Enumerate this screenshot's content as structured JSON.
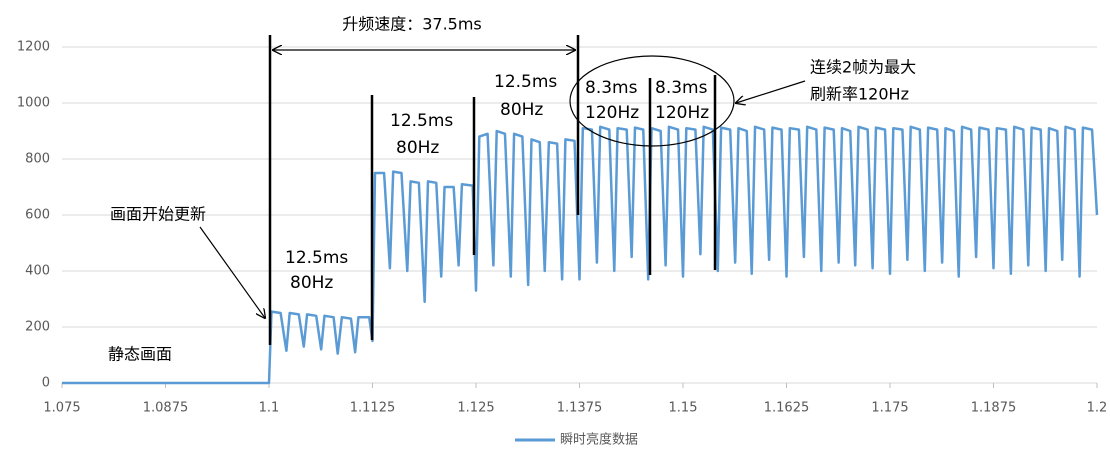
{
  "chart_data": {
    "type": "line",
    "series": [
      {
        "name": "瞬时亮度数据",
        "color": "#5b9bd5",
        "x": [
          1.075,
          1.1,
          1.1003,
          1.1014,
          1.1021,
          1.1025,
          1.1036,
          1.1042,
          1.1046,
          1.1057,
          1.1063,
          1.1067,
          1.1078,
          1.1083,
          1.1088,
          1.1099,
          1.1104,
          1.1108,
          1.1121,
          1.1125,
          1.1128,
          1.1139,
          1.1146,
          1.115,
          1.116,
          1.1167,
          1.1171,
          1.1181,
          1.1188,
          1.1192,
          1.1202,
          1.1208,
          1.1212,
          1.1223,
          1.1229,
          1.1233,
          1.1246,
          1.125,
          1.1254,
          1.1264,
          1.1271,
          1.1275,
          1.1285,
          1.1292,
          1.1296,
          1.1306,
          1.1313,
          1.1317,
          1.1327,
          1.1333,
          1.1338,
          1.1348,
          1.1354,
          1.1358,
          1.1369,
          1.1375,
          1.1379,
          1.139,
          1.1396,
          1.14,
          1.1411,
          1.1417,
          1.1421,
          1.1432,
          1.1438,
          1.1442,
          1.1452,
          1.1458,
          1.1462,
          1.1473,
          1.1479,
          1.1483,
          1.1494,
          1.15,
          1.1504,
          1.1515,
          1.1521,
          1.1525,
          1.1536,
          1.1542,
          1.1546,
          1.1557,
          1.1563,
          1.1567,
          1.1577,
          1.1583,
          1.1587,
          1.1598,
          1.1604,
          1.1608,
          1.1619,
          1.1625,
          1.1629,
          1.164,
          1.1646,
          1.165,
          1.1661,
          1.1667,
          1.1671,
          1.1682,
          1.1688,
          1.1692,
          1.1702,
          1.1708,
          1.1712,
          1.1723,
          1.1729,
          1.1733,
          1.1744,
          1.175,
          1.1754,
          1.1765,
          1.1771,
          1.1775,
          1.1786,
          1.1792,
          1.1796,
          1.1807,
          1.1813,
          1.1817,
          1.1827,
          1.1833,
          1.1837,
          1.1848,
          1.1854,
          1.1858,
          1.1869,
          1.1875,
          1.1879,
          1.189,
          1.1896,
          1.19,
          1.1911,
          1.1917,
          1.1921,
          1.1932,
          1.1938,
          1.1942,
          1.1952,
          1.1958,
          1.1962,
          1.1973,
          1.1979,
          1.1983,
          1.1994,
          1.2
        ],
        "values": [
          0,
          0,
          255,
          250,
          115,
          250,
          245,
          130,
          245,
          240,
          120,
          240,
          235,
          105,
          235,
          230,
          110,
          235,
          235,
          150,
          750,
          750,
          410,
          755,
          750,
          400,
          720,
          715,
          290,
          720,
          715,
          380,
          700,
          700,
          420,
          710,
          705,
          330,
          880,
          890,
          420,
          900,
          890,
          380,
          890,
          880,
          350,
          870,
          860,
          400,
          860,
          855,
          370,
          870,
          865,
          370,
          910,
          905,
          430,
          915,
          905,
          400,
          910,
          905,
          450,
          912,
          905,
          370,
          910,
          900,
          420,
          915,
          905,
          380,
          910,
          905,
          460,
          915,
          905,
          400,
          912,
          905,
          430,
          910,
          900,
          390,
          915,
          905,
          440,
          912,
          905,
          380,
          910,
          905,
          450,
          915,
          905,
          400,
          912,
          905,
          430,
          910,
          900,
          420,
          915,
          905,
          410,
          912,
          905,
          390,
          910,
          905,
          440,
          915,
          905,
          400,
          912,
          905,
          430,
          910,
          900,
          380,
          915,
          905,
          450,
          912,
          905,
          410,
          910,
          905,
          390,
          915,
          905,
          420,
          912,
          905,
          400,
          910,
          900,
          440,
          915,
          905,
          380,
          912,
          905,
          600
        ]
      }
    ],
    "xlim": [
      1.075,
      1.2
    ],
    "xticks": [
      1.075,
      1.0875,
      1.1,
      1.1125,
      1.125,
      1.1375,
      1.15,
      1.1625,
      1.175,
      1.1875,
      1.2
    ],
    "ylim": [
      0,
      1200
    ],
    "yticks": [
      0,
      200,
      400,
      600,
      800,
      1000,
      1200
    ],
    "grid": true,
    "legend": "bottom",
    "annotations": [
      "升频速度：37.5ms",
      "12.5ms",
      "80Hz",
      "12.5ms",
      "80Hz",
      "12.5ms",
      "80Hz",
      "8.3ms",
      "120Hz",
      "8.3ms",
      "120Hz",
      "连续2帧为最大",
      "刷新率120Hz",
      "画面开始更新",
      "静态画面"
    ]
  }
}
